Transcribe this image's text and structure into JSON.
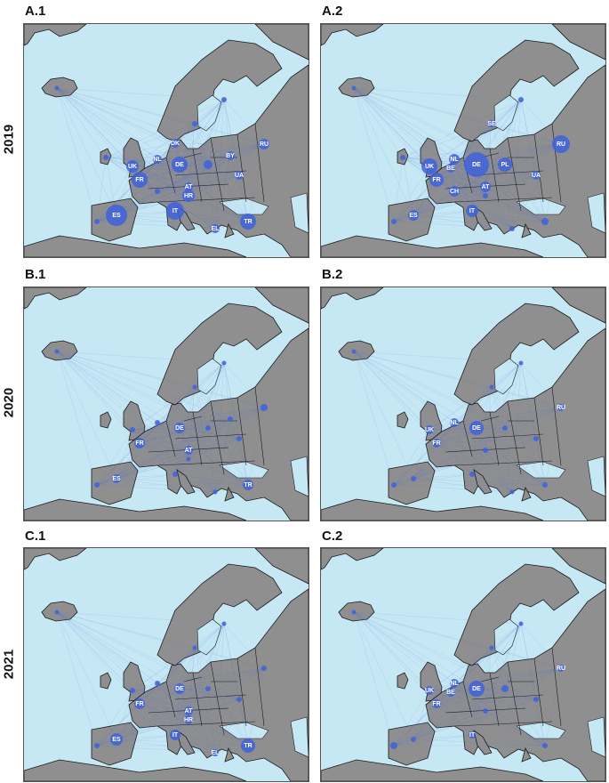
{
  "rows": [
    {
      "year": "2019",
      "panels": [
        {
          "id": "A.1",
          "nodes": [
            {
              "code": "IS",
              "r": 2.5,
              "label": ""
            },
            {
              "code": "UK",
              "r": 7,
              "label": "UK"
            },
            {
              "code": "NL",
              "r": 5,
              "label": "NL"
            },
            {
              "code": "DK",
              "r": 5,
              "label": "DK"
            },
            {
              "code": "DE",
              "r": 9,
              "label": "DE"
            },
            {
              "code": "FR",
              "r": 9,
              "label": "FR"
            },
            {
              "code": "AT",
              "r": 5,
              "label": "AT"
            },
            {
              "code": "HR",
              "r": 7,
              "label": "HR"
            },
            {
              "code": "IT",
              "r": 10,
              "label": "IT"
            },
            {
              "code": "ES",
              "r": 12,
              "label": "ES"
            },
            {
              "code": "BY",
              "r": 5,
              "label": "BY"
            },
            {
              "code": "UA",
              "r": 5,
              "label": "UA"
            },
            {
              "code": "RU",
              "r": 6,
              "label": "RU"
            },
            {
              "code": "TR",
              "r": 9,
              "label": "TR"
            },
            {
              "code": "EL",
              "r": 5,
              "label": "EL"
            },
            {
              "code": "PT",
              "r": 3,
              "label": ""
            },
            {
              "code": "PL",
              "r": 5,
              "label": ""
            },
            {
              "code": "SE",
              "r": 3,
              "label": ""
            },
            {
              "code": "FI",
              "r": 3,
              "label": ""
            },
            {
              "code": "IE",
              "r": 3,
              "label": ""
            },
            {
              "code": "CH",
              "r": 3,
              "label": ""
            }
          ]
        },
        {
          "id": "A.2",
          "nodes": [
            {
              "code": "IS",
              "r": 2.5,
              "label": ""
            },
            {
              "code": "UK",
              "r": 9,
              "label": "UK"
            },
            {
              "code": "NL",
              "r": 6,
              "label": "NL"
            },
            {
              "code": "BE",
              "r": 5,
              "label": "BE"
            },
            {
              "code": "SE",
              "r": 4,
              "label": "SE"
            },
            {
              "code": "DE",
              "r": 14,
              "label": "DE"
            },
            {
              "code": "PL",
              "r": 8,
              "label": "PL"
            },
            {
              "code": "FR",
              "r": 8,
              "label": "FR"
            },
            {
              "code": "CH",
              "r": 6,
              "label": "CH"
            },
            {
              "code": "AT",
              "r": 6,
              "label": "AT"
            },
            {
              "code": "IT",
              "r": 7,
              "label": "IT"
            },
            {
              "code": "ES",
              "r": 6,
              "label": "ES"
            },
            {
              "code": "UA",
              "r": 5,
              "label": "UA"
            },
            {
              "code": "RU",
              "r": 10,
              "label": "RU"
            },
            {
              "code": "TR",
              "r": 4,
              "label": ""
            },
            {
              "code": "PT",
              "r": 3,
              "label": ""
            },
            {
              "code": "FI",
              "r": 3,
              "label": ""
            },
            {
              "code": "IE",
              "r": 3,
              "label": ""
            },
            {
              "code": "EL",
              "r": 3,
              "label": ""
            },
            {
              "code": "HR",
              "r": 3,
              "label": ""
            }
          ]
        }
      ]
    },
    {
      "year": "2020",
      "panels": [
        {
          "id": "B.1",
          "nodes": [
            {
              "code": "IS",
              "r": 2.5,
              "label": ""
            },
            {
              "code": "DE",
              "r": 6,
              "label": "DE"
            },
            {
              "code": "FR",
              "r": 6,
              "label": "FR"
            },
            {
              "code": "AT",
              "r": 5,
              "label": "AT"
            },
            {
              "code": "ES",
              "r": 5,
              "label": "ES"
            },
            {
              "code": "TR",
              "r": 6,
              "label": "TR"
            },
            {
              "code": "RU",
              "r": 4,
              "label": ""
            },
            {
              "code": "UK",
              "r": 3,
              "label": ""
            },
            {
              "code": "IT",
              "r": 3,
              "label": ""
            },
            {
              "code": "PL",
              "r": 3,
              "label": ""
            },
            {
              "code": "NL",
              "r": 3,
              "label": ""
            },
            {
              "code": "PT",
              "r": 3,
              "label": ""
            },
            {
              "code": "BY",
              "r": 3,
              "label": ""
            },
            {
              "code": "UA",
              "r": 3,
              "label": ""
            },
            {
              "code": "SE",
              "r": 2.5,
              "label": ""
            },
            {
              "code": "FI",
              "r": 2.5,
              "label": ""
            },
            {
              "code": "HR",
              "r": 2.5,
              "label": ""
            },
            {
              "code": "EL",
              "r": 2.5,
              "label": ""
            }
          ]
        },
        {
          "id": "B.2",
          "nodes": [
            {
              "code": "IS",
              "r": 2.5,
              "label": ""
            },
            {
              "code": "UK",
              "r": 5,
              "label": "UK"
            },
            {
              "code": "NL",
              "r": 5,
              "label": "NL"
            },
            {
              "code": "FR",
              "r": 5,
              "label": "FR"
            },
            {
              "code": "DE",
              "r": 8,
              "label": "DE"
            },
            {
              "code": "RU",
              "r": 4,
              "label": "RU"
            },
            {
              "code": "ES",
              "r": 3,
              "label": ""
            },
            {
              "code": "IT",
              "r": 3,
              "label": ""
            },
            {
              "code": "PL",
              "r": 3,
              "label": ""
            },
            {
              "code": "TR",
              "r": 3,
              "label": ""
            },
            {
              "code": "PT",
              "r": 3,
              "label": ""
            },
            {
              "code": "UA",
              "r": 3,
              "label": ""
            },
            {
              "code": "SE",
              "r": 2.5,
              "label": ""
            },
            {
              "code": "FI",
              "r": 2.5,
              "label": ""
            },
            {
              "code": "AT",
              "r": 3,
              "label": ""
            },
            {
              "code": "EL",
              "r": 2.5,
              "label": ""
            }
          ]
        }
      ]
    },
    {
      "year": "2021",
      "panels": [
        {
          "id": "C.1",
          "nodes": [
            {
              "code": "IS",
              "r": 2.5,
              "label": ""
            },
            {
              "code": "DE",
              "r": 6,
              "label": "DE"
            },
            {
              "code": "FR",
              "r": 6,
              "label": "FR"
            },
            {
              "code": "AT",
              "r": 5,
              "label": "AT"
            },
            {
              "code": "HR",
              "r": 5,
              "label": "HR"
            },
            {
              "code": "IT",
              "r": 6,
              "label": "IT"
            },
            {
              "code": "ES",
              "r": 7,
              "label": "ES"
            },
            {
              "code": "TR",
              "r": 8,
              "label": "TR"
            },
            {
              "code": "EL",
              "r": 4,
              "label": "EL"
            },
            {
              "code": "RU",
              "r": 3,
              "label": ""
            },
            {
              "code": "UK",
              "r": 3,
              "label": ""
            },
            {
              "code": "PT",
              "r": 3,
              "label": ""
            },
            {
              "code": "PL",
              "r": 3,
              "label": ""
            },
            {
              "code": "NL",
              "r": 3,
              "label": ""
            },
            {
              "code": "SE",
              "r": 2.5,
              "label": ""
            },
            {
              "code": "FI",
              "r": 2.5,
              "label": ""
            },
            {
              "code": "UA",
              "r": 3,
              "label": ""
            }
          ]
        },
        {
          "id": "C.2",
          "nodes": [
            {
              "code": "IS",
              "r": 2.5,
              "label": ""
            },
            {
              "code": "UK",
              "r": 5,
              "label": "UK"
            },
            {
              "code": "NL",
              "r": 5,
              "label": "NL"
            },
            {
              "code": "BE",
              "r": 5,
              "label": "BE"
            },
            {
              "code": "FR",
              "r": 5,
              "label": "FR"
            },
            {
              "code": "DE",
              "r": 9,
              "label": "DE"
            },
            {
              "code": "IT",
              "r": 4,
              "label": "IT"
            },
            {
              "code": "RU",
              "r": 4,
              "label": "RU"
            },
            {
              "code": "PL",
              "r": 4,
              "label": ""
            },
            {
              "code": "ES",
              "r": 3,
              "label": ""
            },
            {
              "code": "PT",
              "r": 4,
              "label": ""
            },
            {
              "code": "TR",
              "r": 3,
              "label": ""
            },
            {
              "code": "UA",
              "r": 3,
              "label": ""
            },
            {
              "code": "SE",
              "r": 2.5,
              "label": ""
            },
            {
              "code": "FI",
              "r": 2.5,
              "label": ""
            },
            {
              "code": "AT",
              "r": 3,
              "label": ""
            }
          ]
        }
      ]
    }
  ],
  "colors": {
    "sea": "#c6e7f4",
    "land": "#8f8f8f",
    "node": "#3f62dc",
    "edge": "#4a6ee0"
  }
}
